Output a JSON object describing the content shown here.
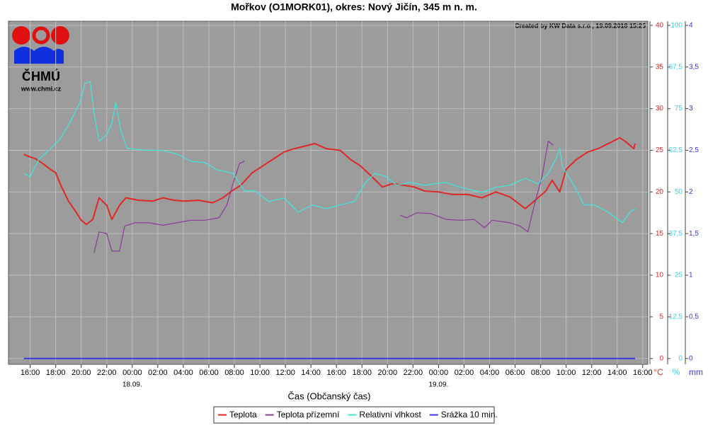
{
  "logo": {
    "name": "ČHMÚ",
    "url": "www.chmi.cz"
  },
  "chart_data": {
    "type": "line",
    "title": "Mořkov (O1MORK01), okres: Nový Jičín, 345 m n. m.",
    "annotation": "Created by KW Data s.r.o., 19.09.2018 15:25",
    "xlabel": "Čas (Občanský čas)",
    "grid": true,
    "xlim": [
      14.3,
      64.4
    ],
    "xticks": [
      {
        "value": 16,
        "label": "16:00"
      },
      {
        "value": 18,
        "label": "18:00"
      },
      {
        "value": 20,
        "label": "20:00"
      },
      {
        "value": 22,
        "label": "22:00"
      },
      {
        "value": 24,
        "label": "00:00"
      },
      {
        "value": 26,
        "label": "02:00"
      },
      {
        "value": 28,
        "label": "04:00"
      },
      {
        "value": 30,
        "label": "06:00"
      },
      {
        "value": 32,
        "label": "08:00"
      },
      {
        "value": 34,
        "label": "10:00"
      },
      {
        "value": 36,
        "label": "12:00"
      },
      {
        "value": 38,
        "label": "14:00"
      },
      {
        "value": 40,
        "label": "16:00"
      },
      {
        "value": 42,
        "label": "18:00"
      },
      {
        "value": 44,
        "label": "20:00"
      },
      {
        "value": 46,
        "label": "22:00"
      },
      {
        "value": 48,
        "label": "00:00"
      },
      {
        "value": 50,
        "label": "02:00"
      },
      {
        "value": 52,
        "label": "04:00"
      },
      {
        "value": 54,
        "label": "06:00"
      },
      {
        "value": 56,
        "label": "08:00"
      },
      {
        "value": 58,
        "label": "10:00"
      },
      {
        "value": 60,
        "label": "12:00"
      },
      {
        "value": 62,
        "label": "14:00"
      },
      {
        "value": 64,
        "label": "16:00"
      }
    ],
    "date_labels": [
      {
        "value": 24,
        "label": "18.09."
      },
      {
        "value": 48,
        "label": "19.09."
      }
    ],
    "ylim": [
      -0.7,
      40.5
    ],
    "yticks": [
      0,
      5,
      10,
      15,
      20,
      25,
      30,
      35,
      40
    ],
    "y_unit": "°C",
    "y2lim": [
      -1.75,
      101.25
    ],
    "y2ticks": [
      0,
      {
        "value": 12.5,
        "label": "12,5"
      },
      25,
      {
        "value": 37.5,
        "label": "37,5"
      },
      50,
      {
        "value": 62.5,
        "label": "62,5"
      },
      75,
      {
        "value": 87.5,
        "label": "87,5"
      },
      100
    ],
    "y2_unit": "%",
    "y3lim": [
      -0.07,
      4.05
    ],
    "y3ticks": [
      0,
      {
        "value": 0.5,
        "label": "0,5"
      },
      1,
      {
        "value": 1.5,
        "label": "1,5"
      },
      2,
      {
        "value": 2.5,
        "label": "2,5"
      },
      3,
      {
        "value": 3.5,
        "label": "3,5"
      },
      4
    ],
    "y3_unit": "mm",
    "series": [
      {
        "name": "Teplota",
        "color": "#e02828",
        "axis": "y",
        "x": [
          15.5,
          16,
          16.4,
          17,
          17.5,
          18,
          18.4,
          19,
          19.5,
          20,
          20.4,
          20.9,
          21.4,
          22,
          22.4,
          23,
          23.5,
          24.5,
          25.6,
          26.4,
          27.3,
          28.1,
          29.2,
          30.3,
          31.1,
          31.7,
          32.5,
          33.4,
          34.2,
          35,
          35.9,
          36.7,
          37.5,
          38.3,
          39.2,
          40.3,
          41.1,
          41.9,
          42.8,
          43.6,
          44.4,
          45.3,
          46.1,
          46.9,
          48,
          49.1,
          50.3,
          51.4,
          52.5,
          53.6,
          54.8,
          55.5,
          56.4,
          56.9,
          57.5,
          58,
          58.8,
          59.7,
          60.5,
          61.3,
          62.2,
          62.7,
          63.3,
          63.4
        ],
        "values": [
          24.5,
          24.2,
          24,
          23.4,
          22.8,
          22.3,
          20.8,
          18.9,
          17.8,
          16.6,
          16.1,
          16.7,
          19.3,
          18.4,
          16.7,
          18.4,
          19.3,
          19,
          18.9,
          19.3,
          19,
          18.9,
          19,
          18.7,
          19.3,
          20,
          20.8,
          22.3,
          23.1,
          23.9,
          24.8,
          25.2,
          25.5,
          25.8,
          25.2,
          25,
          23.9,
          23.1,
          21.8,
          20.6,
          21,
          20.8,
          20.6,
          20.1,
          20,
          19.7,
          19.7,
          19.3,
          20,
          19.4,
          18,
          18.9,
          20.1,
          21.4,
          20,
          22.7,
          23.9,
          24.8,
          25.2,
          25.8,
          26.5,
          26,
          25.2,
          25.8
        ]
      },
      {
        "name": "Teplota přízemní",
        "color": "#8a3c98",
        "axis": "y",
        "x": [
          21,
          21.4,
          22,
          22.4,
          23,
          23.4,
          24.2,
          25.3,
          26.4,
          27.5,
          28.6,
          29.7,
          30.8,
          31.4,
          31.9,
          32.4,
          32.8,
          38,
          45,
          45.5,
          46.3,
          47.4,
          48.6,
          49.7,
          50.8,
          51.6,
          52.2,
          53.6,
          54.4,
          55,
          55.5,
          56.1,
          56.6,
          57
        ],
        "values": [
          12.7,
          15.2,
          15,
          12.9,
          12.9,
          15.9,
          16.3,
          16.3,
          16,
          16.3,
          16.6,
          16.6,
          16.9,
          18.4,
          21,
          23.4,
          23.7,
          null,
          17.2,
          16.9,
          17.5,
          17.4,
          16.7,
          16.6,
          16.7,
          15.7,
          16.6,
          16.3,
          15.9,
          15.2,
          18.4,
          21.8,
          26.1,
          25.6
        ]
      },
      {
        "name": "Relativní vlhkost",
        "color": "#40e8e0",
        "axis": "y2",
        "x": [
          15.5,
          16,
          16.7,
          17.5,
          18.4,
          19.2,
          19.9,
          20.3,
          20.7,
          21,
          21.4,
          22,
          22.4,
          22.7,
          23.1,
          23.6,
          24.8,
          26.4,
          27.5,
          28.6,
          29.7,
          30.6,
          31.9,
          32.8,
          33.6,
          34.7,
          35.9,
          37,
          38.1,
          39.2,
          40.3,
          41.4,
          42.2,
          43,
          43.9,
          44.7,
          45.8,
          46.9,
          48.6,
          49.7,
          51.4,
          52.5,
          53.6,
          54.8,
          55.8,
          56.6,
          57.2,
          57.5,
          57.7,
          58.6,
          59.4,
          60.2,
          61.3,
          62.4,
          63,
          63.4
        ],
        "values": [
          55.6,
          54.6,
          59.9,
          62.6,
          66.2,
          71.5,
          76.9,
          82.6,
          83.2,
          73.7,
          65.2,
          67.3,
          70.5,
          76.9,
          68.4,
          63.1,
          62.6,
          62.4,
          61.4,
          59.2,
          58.8,
          56.7,
          55.6,
          50.3,
          50.3,
          47.1,
          48.2,
          43.9,
          46.1,
          45,
          46.1,
          47.1,
          52.4,
          55.6,
          54.6,
          52,
          52.9,
          52,
          52.9,
          51.4,
          49.9,
          51.4,
          52,
          54.1,
          52.4,
          55.6,
          59.9,
          63.1,
          57.7,
          52,
          46.1,
          46.1,
          43.9,
          40.8,
          43.9,
          45
        ]
      },
      {
        "name": "Srážka 10 min.",
        "color": "#3838e0",
        "axis": "y3",
        "x": [
          15.5,
          63.4
        ],
        "values": [
          0,
          0
        ]
      }
    ]
  }
}
